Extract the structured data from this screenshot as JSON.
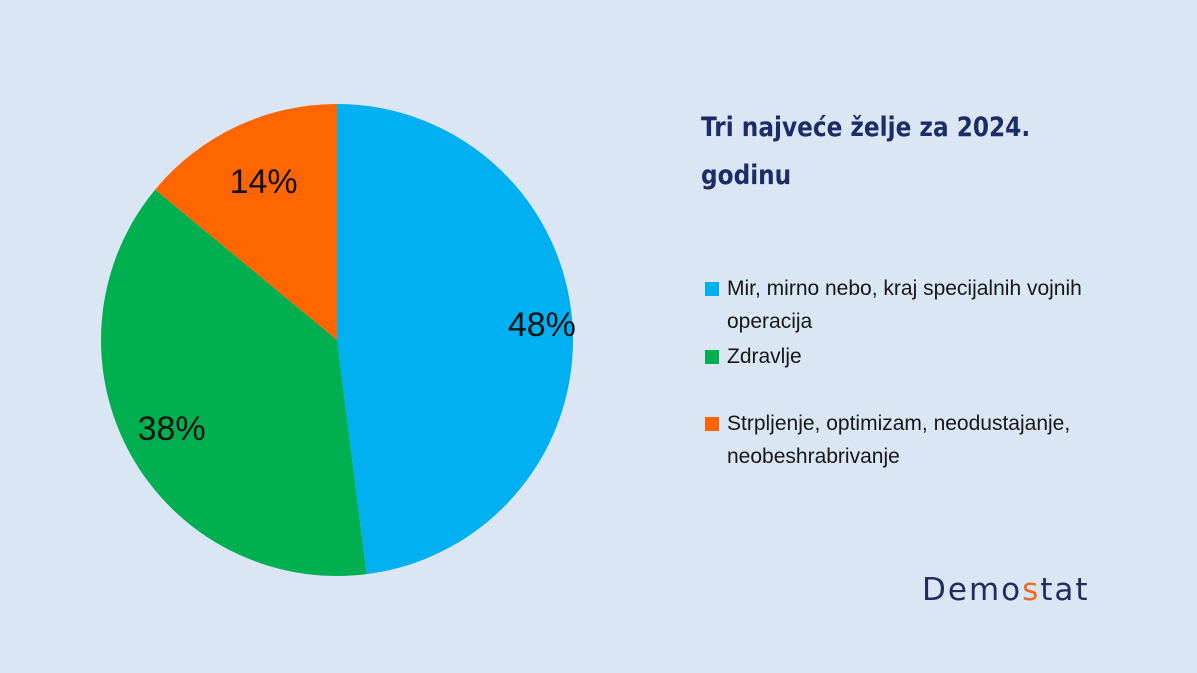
{
  "chart_data": {
    "type": "pie",
    "title": "Tri najveće želje za 2024. godinu",
    "slices": [
      {
        "label": "Mir, mirno nebo, kraj specijalnih vojnih operacija",
        "value": 48,
        "display": "48%",
        "color": "#00b0f0"
      },
      {
        "label": "Zdravlje",
        "value": 38,
        "display": "38%",
        "color": "#00b050"
      },
      {
        "label": "Strpljenje, optimizam, neodustajanje, neobeshrabrivanje",
        "value": 14,
        "display": "14%",
        "color": "#ff6600"
      }
    ],
    "legend_position": "right"
  },
  "logo": {
    "before": "Demo",
    "accent": "s",
    "after": "tat"
  }
}
